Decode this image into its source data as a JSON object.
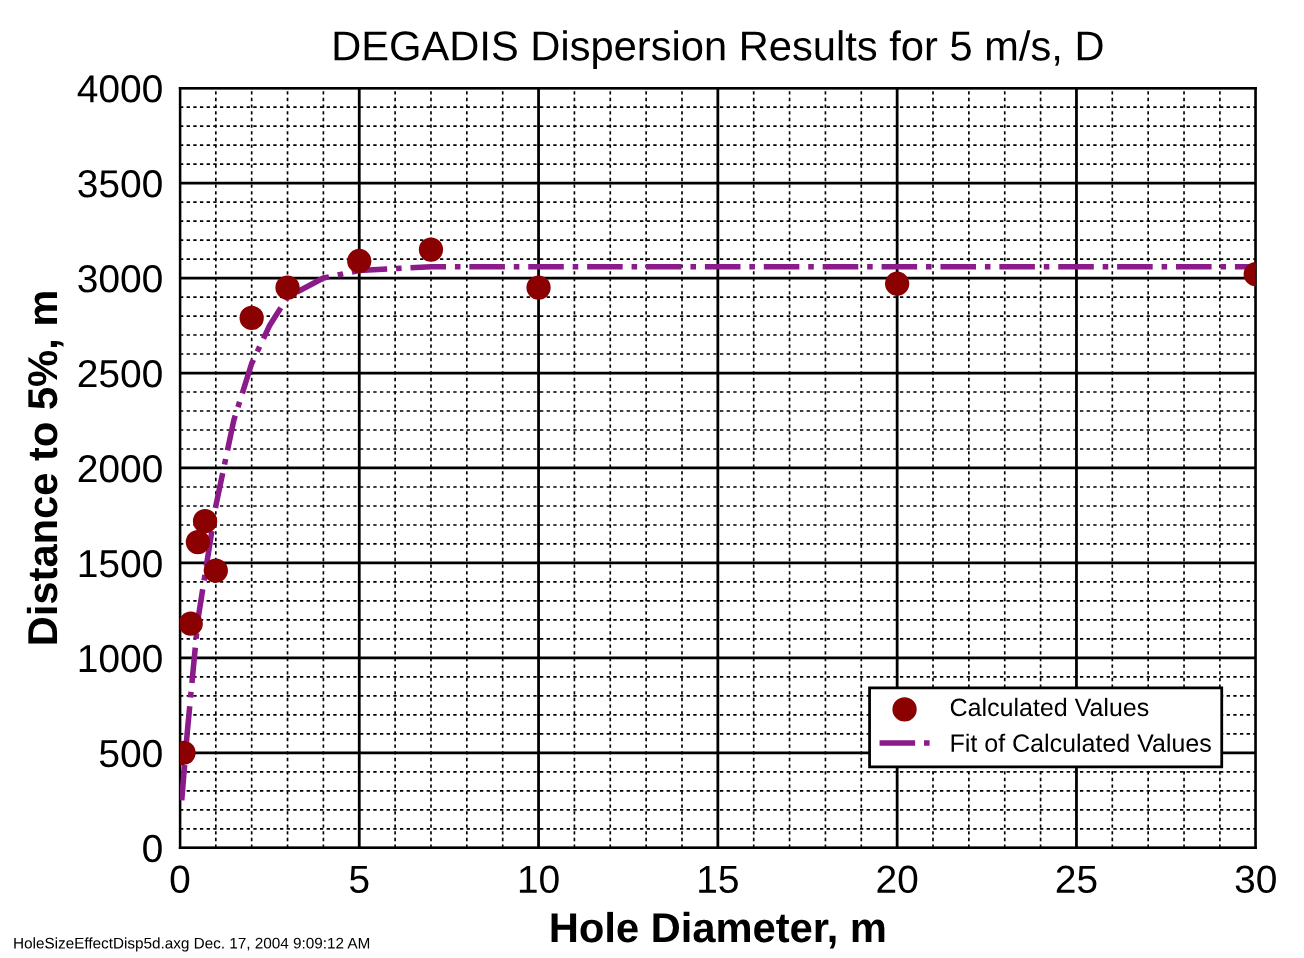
{
  "chart_data": {
    "type": "scatter",
    "title": "DEGADIS Dispersion Results for 5 m/s, D",
    "xlabel": "Hole Diameter, m",
    "ylabel": "Distance to 5%, m",
    "xlim": [
      0,
      30
    ],
    "xticks": [
      0,
      5,
      10,
      15,
      20,
      25,
      30
    ],
    "ylim": [
      0,
      4000
    ],
    "yticks": [
      0,
      500,
      1000,
      1500,
      2000,
      2500,
      3000,
      3500,
      4000
    ],
    "grid": true,
    "legend": "bottom right",
    "annotations": [
      "HoleSizeEffectDisp5d.axg Dec. 17, 2004 9:09:12 AM"
    ],
    "series": [
      {
        "name": "Calculated Values",
        "color": "#8b0000",
        "marker": "circle",
        "x": [
          0.1,
          0.3,
          0.5,
          0.7,
          1,
          2,
          3,
          5,
          7,
          10,
          20,
          30
        ],
        "values": [
          500,
          1180,
          1610,
          1720,
          1460,
          2790,
          2950,
          3090,
          3150,
          2950,
          2970,
          3020
        ]
      },
      {
        "name": "Fit of Calculated Values",
        "type": "line",
        "color": "#8b1a8b",
        "line_style": "dashdot",
        "x": [
          0.05,
          0.2,
          0.5,
          1,
          1.5,
          2,
          2.5,
          3,
          4,
          5,
          7,
          10,
          30
        ],
        "values": [
          250,
          600,
          1200,
          1800,
          2250,
          2550,
          2750,
          2900,
          3000,
          3040,
          3060,
          3060,
          3060
        ]
      }
    ]
  }
}
